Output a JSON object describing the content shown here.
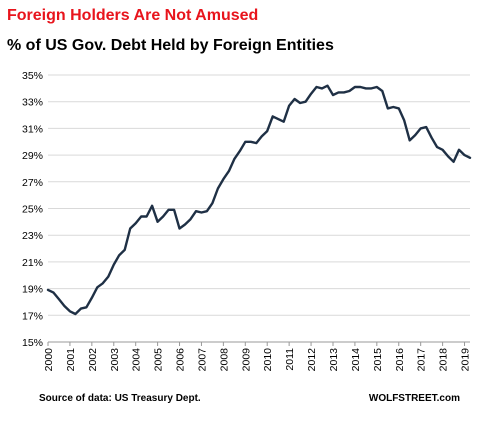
{
  "header": {
    "title": "Foreign Holders Are Not Amused",
    "subtitle": "% of US Gov. Debt Held by Foreign Entities"
  },
  "footer": {
    "source": "Source of data: US Treasury Dept.",
    "brand": "WOLFSTREET.com"
  },
  "colors": {
    "title": "#e8141c",
    "line": "#1f3045",
    "grid": "#d9d9d9"
  },
  "chart_data": {
    "type": "line",
    "title": "% of US Gov. Debt Held by Foreign Entities",
    "xlabel": "",
    "ylabel": "",
    "ylim": [
      15,
      35
    ],
    "xlim": [
      2000,
      2019.25
    ],
    "y_ticks": [
      15,
      17,
      19,
      21,
      23,
      25,
      27,
      29,
      31,
      33,
      35
    ],
    "y_tick_labels": [
      "15%",
      "17%",
      "19%",
      "21%",
      "23%",
      "25%",
      "27%",
      "29%",
      "31%",
      "33%",
      "35%"
    ],
    "x_ticks": [
      2000,
      2001,
      2002,
      2003,
      2004,
      2005,
      2006,
      2007,
      2008,
      2009,
      2010,
      2011,
      2012,
      2013,
      2014,
      2015,
      2016,
      2017,
      2018,
      2019
    ],
    "x_tick_labels": [
      "2000",
      "2001",
      "2002",
      "2003",
      "2004",
      "2005",
      "2006",
      "2007",
      "2008",
      "2009",
      "2010",
      "2011",
      "2012",
      "2013",
      "2014",
      "2015",
      "2016",
      "2017",
      "2018",
      "2019"
    ],
    "grid": true,
    "legend": "none",
    "series": [
      {
        "x": [
          2000.0,
          2000.25,
          2000.5,
          2000.75,
          2001.0,
          2001.25,
          2001.5,
          2001.75,
          2002.0,
          2002.25,
          2002.5,
          2002.75,
          2003.0,
          2003.25,
          2003.5,
          2003.75,
          2004.0,
          2004.25,
          2004.5,
          2004.75,
          2005.0,
          2005.25,
          2005.5,
          2005.75,
          2006.0,
          2006.25,
          2006.5,
          2006.75,
          2007.0,
          2007.25,
          2007.5,
          2007.75,
          2008.0,
          2008.25,
          2008.5,
          2008.75,
          2009.0,
          2009.25,
          2009.5,
          2009.75,
          2010.0,
          2010.25,
          2010.5,
          2010.75,
          2011.0,
          2011.25,
          2011.5,
          2011.75,
          2012.0,
          2012.25,
          2012.5,
          2012.75,
          2013.0,
          2013.25,
          2013.5,
          2013.75,
          2014.0,
          2014.25,
          2014.5,
          2014.75,
          2015.0,
          2015.25,
          2015.5,
          2015.75,
          2016.0,
          2016.25,
          2016.5,
          2016.75,
          2017.0,
          2017.25,
          2017.5,
          2017.75,
          2018.0,
          2018.25,
          2018.5,
          2018.75,
          2019.0,
          2019.25
        ],
        "values": [
          18.9,
          18.7,
          18.2,
          17.7,
          17.3,
          17.1,
          17.5,
          17.6,
          18.3,
          19.1,
          19.4,
          19.9,
          20.8,
          21.5,
          21.9,
          23.5,
          23.9,
          24.4,
          24.4,
          25.2,
          24.0,
          24.4,
          24.9,
          24.9,
          23.5,
          23.8,
          24.2,
          24.8,
          24.7,
          24.8,
          25.4,
          26.5,
          27.2,
          27.8,
          28.7,
          29.3,
          30.0,
          30.0,
          29.9,
          30.4,
          30.8,
          31.9,
          31.7,
          31.5,
          32.7,
          33.2,
          32.9,
          33.0,
          33.6,
          34.1,
          34.0,
          34.2,
          33.5,
          33.7,
          33.7,
          33.8,
          34.1,
          34.1,
          34.0,
          34.0,
          34.1,
          33.8,
          32.5,
          32.6,
          32.5,
          31.6,
          30.1,
          30.5,
          31.0,
          31.1,
          30.3,
          29.6,
          29.4,
          28.9,
          28.5,
          29.4,
          29.0,
          28.8
        ]
      }
    ]
  }
}
